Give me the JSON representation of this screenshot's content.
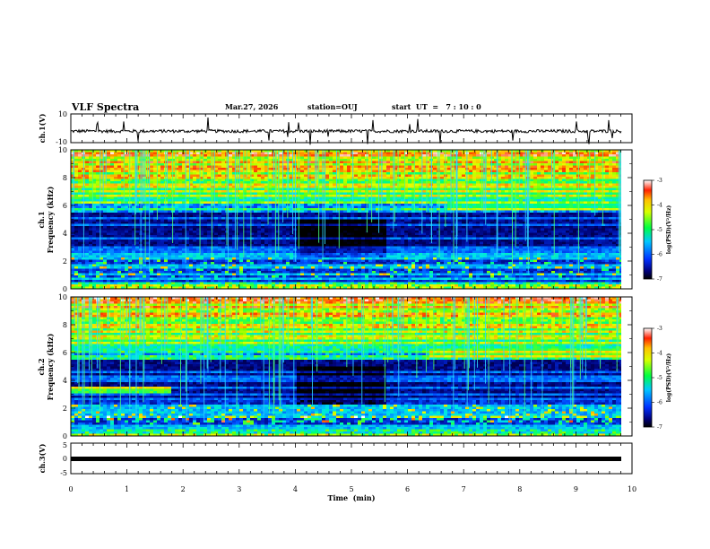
{
  "header": {
    "title": "VLF Spectra",
    "date": "Mar.27, 2026",
    "station": "station=OUJ",
    "start": "start  UT  =   7 : 10 : 0"
  },
  "chart_data": [
    {
      "type": "line",
      "ylabel": "ch.1(V)",
      "ylim": [
        -10,
        10
      ],
      "ytick_labels": [
        "10",
        "-10"
      ],
      "xlim": [
        0,
        10
      ],
      "baseline": -2,
      "description_trace": "noisy waveform around -2 V with sporadic spikes"
    },
    {
      "type": "heatmap",
      "ylabel_top": "ch.1",
      "ylabel": "Frequency (kHz)",
      "ylim": [
        0,
        10
      ],
      "ytick_labels": [
        "0",
        "2",
        "4",
        "6",
        "8",
        "10"
      ],
      "xlim": [
        0,
        10
      ],
      "colorbar": {
        "label": "log(PSD)(V²/Hz)",
        "range": [
          -7,
          -3
        ],
        "tick_labels": [
          "-3",
          "-4",
          "-5",
          "-6",
          "-7"
        ]
      }
    },
    {
      "type": "heatmap",
      "ylabel_top": "ch.2",
      "ylabel": "Frequency (kHz)",
      "ylim": [
        0,
        10
      ],
      "ytick_labels": [
        "0",
        "2",
        "4",
        "6",
        "8",
        "10"
      ],
      "xlim": [
        0,
        10
      ],
      "colorbar": {
        "label": "log(PSD)(V²/Hz)",
        "range": [
          -7,
          -3
        ],
        "tick_labels": [
          "-3",
          "-4",
          "-5",
          "-6",
          "-7"
        ]
      }
    },
    {
      "type": "line",
      "ylabel": "ch.3(V)",
      "ylim": [
        -5,
        5
      ],
      "ytick_labels": [
        "5",
        "0",
        "-5"
      ],
      "xlim": [
        0,
        10
      ],
      "baseline": -1
    }
  ],
  "xaxis": {
    "label": "Time  (min)",
    "tick_labels": [
      "0",
      "1",
      "2",
      "3",
      "4",
      "5",
      "6",
      "7",
      "8",
      "9",
      "10"
    ]
  }
}
